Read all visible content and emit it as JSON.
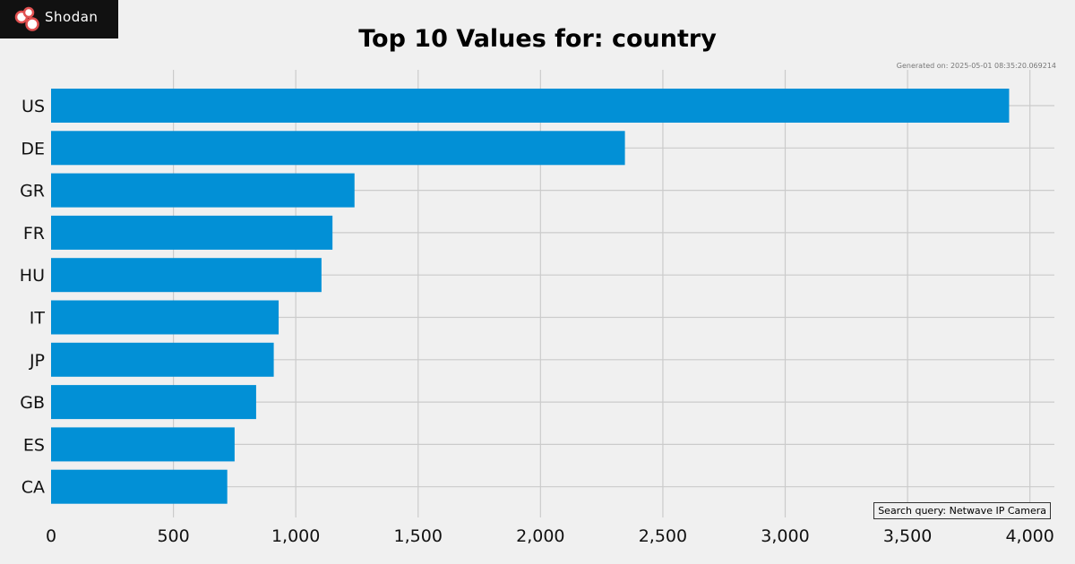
{
  "logo": {
    "text": "Shodan",
    "icon": "shodan-logo-icon"
  },
  "generated_note": "Generated on: 2025-05-01 08:35:20.069214",
  "search_query": "Search query: Netwave IP Camera",
  "colors": {
    "background": "#f0f0f0",
    "bar": "#0290d6",
    "grid": "#cbcbcb",
    "logo_bg": "#111111",
    "logo_accent": "#e05050"
  },
  "chart_data": {
    "type": "bar",
    "orientation": "horizontal",
    "title": "Top 10 Values for: country",
    "xlabel": "",
    "ylabel": "",
    "categories": [
      "US",
      "DE",
      "GR",
      "FR",
      "HU",
      "IT",
      "JP",
      "GB",
      "ES",
      "CA"
    ],
    "values": [
      3915,
      2345,
      1240,
      1150,
      1105,
      930,
      910,
      838,
      750,
      720
    ],
    "xlim": [
      0,
      4100
    ],
    "xticks": [
      0,
      500,
      1000,
      1500,
      2000,
      2500,
      3000,
      3500,
      4000
    ],
    "xtick_labels": [
      "0",
      "500",
      "1,000",
      "1,500",
      "2,000",
      "2,500",
      "3,000",
      "3,500",
      "4,000"
    ],
    "grid": true,
    "legend": "none"
  }
}
